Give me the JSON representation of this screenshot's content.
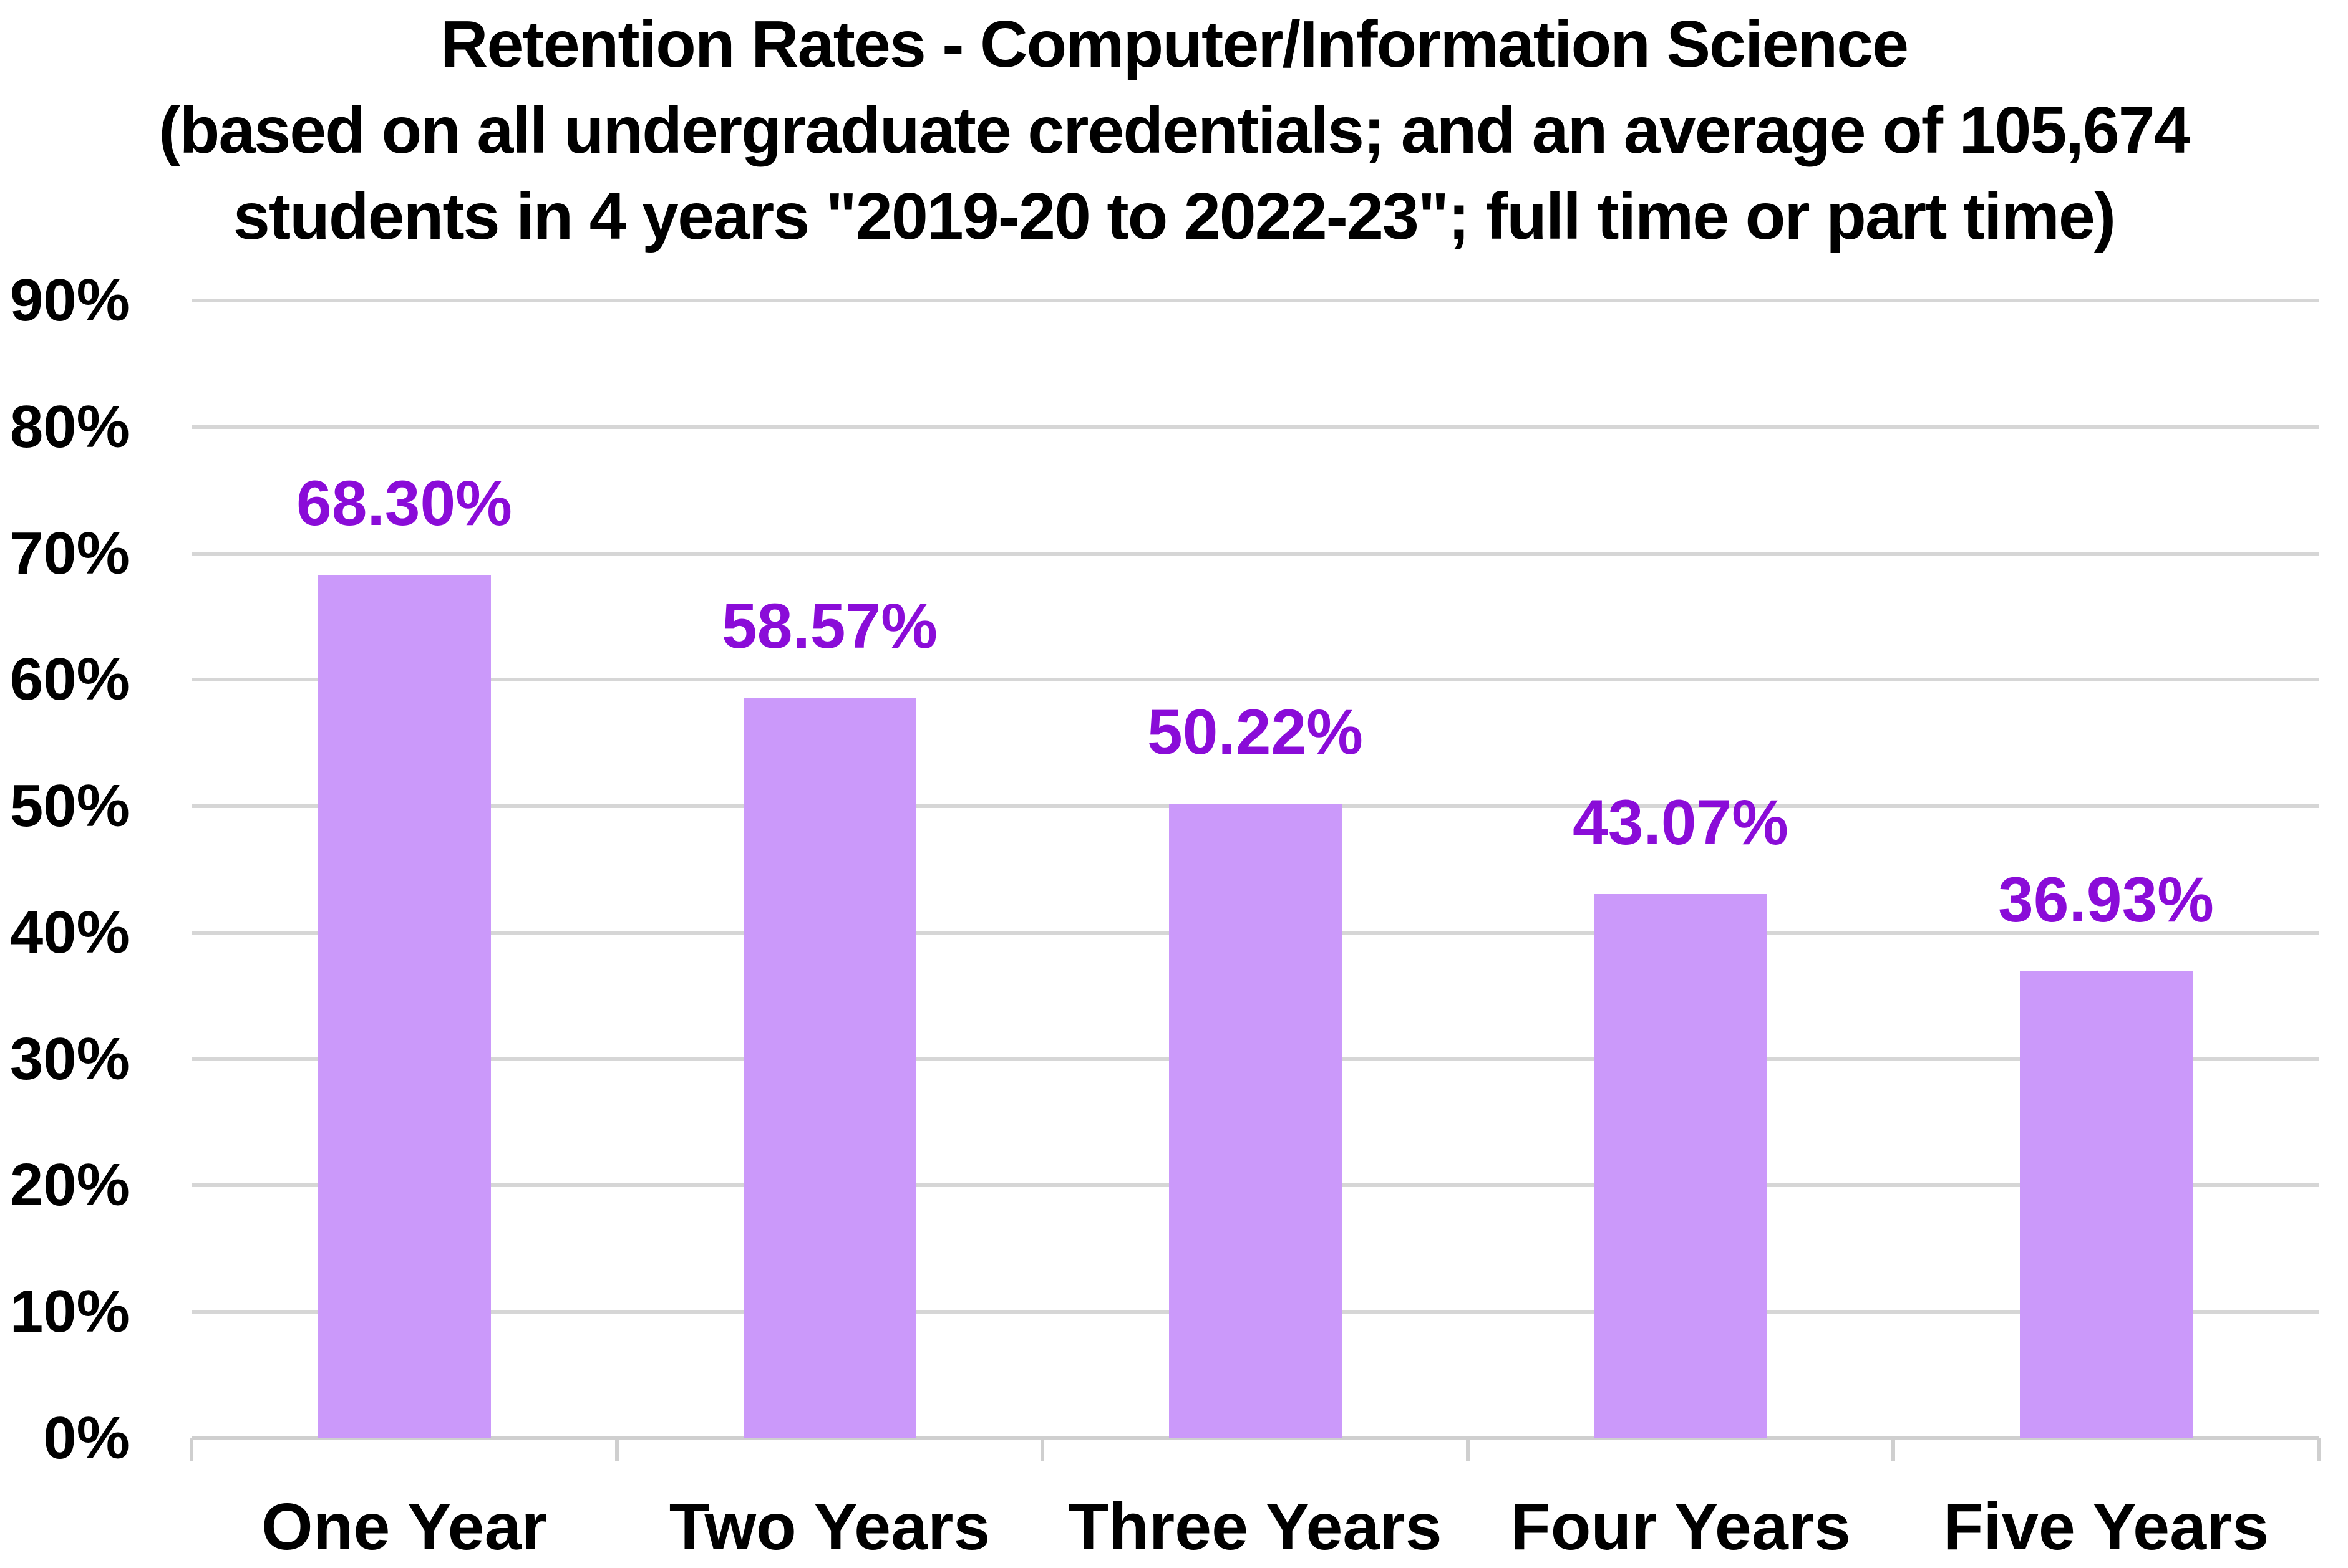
{
  "title": {
    "line1": "Retention Rates - Computer/Information Science",
    "line2": "(based on all undergraduate credentials; and an average of 105,674",
    "line3": "students in 4 years \"2019-20 to 2022-23\"; full time or part time)"
  },
  "chart_data": {
    "type": "bar",
    "categories": [
      "One Year",
      "Two Years",
      "Three Years",
      "Four Years",
      "Five Years"
    ],
    "values": [
      68.3,
      58.57,
      50.22,
      43.07,
      36.93
    ],
    "data_labels": [
      "68.30%",
      "58.57%",
      "50.22%",
      "43.07%",
      "36.93%"
    ],
    "y_tick_labels": [
      "90%",
      "80%",
      "70%",
      "60%",
      "50%",
      "40%",
      "30%",
      "20%",
      "10%",
      "0%"
    ],
    "ylim": [
      0,
      90
    ],
    "y_tick_step": 10,
    "grid": true,
    "legend": false,
    "xlabel": "",
    "ylabel": "",
    "colors": {
      "bar_fill": "#CB99FA",
      "data_label": "#8A0CD8",
      "gridline": "#D6D6D6",
      "axis_line": "#CFCFCF",
      "axis_text": "#000000",
      "background": "#FFFFFF"
    }
  }
}
